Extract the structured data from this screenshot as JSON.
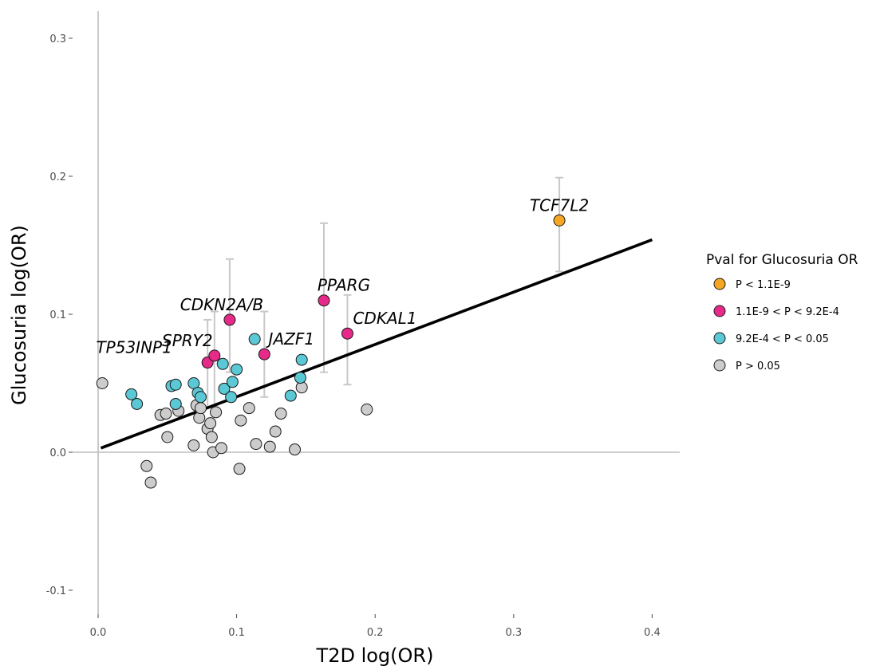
{
  "chart_data": {
    "type": "scatter",
    "xlabel": "T2D log(OR)",
    "ylabel": "Glucosuria log(OR)",
    "xlim": [
      0.0,
      0.42
    ],
    "ylim": [
      -0.12,
      0.32
    ],
    "x_ticks": [
      "0.0",
      "0.1",
      "0.2",
      "0.3",
      "0.4"
    ],
    "y_ticks": [
      "0.3",
      "0.2",
      "0.1",
      "0.0",
      "-0.1"
    ],
    "grid": false,
    "legend": {
      "title": "Pval for Glucosuria OR",
      "position": "right",
      "entries": [
        {
          "label": "P < 1.1E-9",
          "color": "#F5A623"
        },
        {
          "label": "1.1E-9 < P < 9.2E-4",
          "color": "#E7298A"
        },
        {
          "label": "9.2E-4 < P < 0.05",
          "color": "#5BC8D5"
        },
        {
          "label": "P > 0.05",
          "color": "#CCCCCC"
        }
      ]
    },
    "regression_line": {
      "x": [
        0.002,
        0.4
      ],
      "y": [
        0.003,
        0.154
      ]
    },
    "error_bars": [
      {
        "x": 0.333,
        "low": 0.131,
        "high": 0.199
      },
      {
        "x": 0.163,
        "low": 0.058,
        "high": 0.166
      },
      {
        "x": 0.18,
        "low": 0.049,
        "high": 0.114
      },
      {
        "x": 0.095,
        "low": 0.058,
        "high": 0.14
      },
      {
        "x": 0.12,
        "low": 0.04,
        "high": 0.102
      },
      {
        "x": 0.079,
        "low": 0.033,
        "high": 0.096
      },
      {
        "x": 0.084,
        "low": 0.034,
        "high": 0.102
      }
    ],
    "points": [
      {
        "x": 0.333,
        "y": 0.168,
        "group": 0
      },
      {
        "x": 0.163,
        "y": 0.11,
        "group": 1
      },
      {
        "x": 0.18,
        "y": 0.086,
        "group": 1
      },
      {
        "x": 0.095,
        "y": 0.096,
        "group": 1
      },
      {
        "x": 0.12,
        "y": 0.071,
        "group": 1
      },
      {
        "x": 0.079,
        "y": 0.065,
        "group": 1
      },
      {
        "x": 0.084,
        "y": 0.07,
        "group": 1
      },
      {
        "x": 0.024,
        "y": 0.042,
        "group": 2
      },
      {
        "x": 0.028,
        "y": 0.035,
        "group": 2
      },
      {
        "x": 0.053,
        "y": 0.048,
        "group": 2
      },
      {
        "x": 0.056,
        "y": 0.049,
        "group": 2
      },
      {
        "x": 0.056,
        "y": 0.035,
        "group": 2
      },
      {
        "x": 0.069,
        "y": 0.05,
        "group": 2
      },
      {
        "x": 0.072,
        "y": 0.043,
        "group": 2
      },
      {
        "x": 0.074,
        "y": 0.04,
        "group": 2
      },
      {
        "x": 0.09,
        "y": 0.064,
        "group": 2
      },
      {
        "x": 0.091,
        "y": 0.046,
        "group": 2
      },
      {
        "x": 0.096,
        "y": 0.04,
        "group": 2
      },
      {
        "x": 0.097,
        "y": 0.051,
        "group": 2
      },
      {
        "x": 0.1,
        "y": 0.06,
        "group": 2
      },
      {
        "x": 0.113,
        "y": 0.082,
        "group": 2
      },
      {
        "x": 0.139,
        "y": 0.041,
        "group": 2
      },
      {
        "x": 0.146,
        "y": 0.054,
        "group": 2
      },
      {
        "x": 0.147,
        "y": 0.067,
        "group": 2
      },
      {
        "x": 0.003,
        "y": 0.05,
        "group": 3
      },
      {
        "x": 0.035,
        "y": -0.01,
        "group": 3
      },
      {
        "x": 0.038,
        "y": -0.022,
        "group": 3
      },
      {
        "x": 0.045,
        "y": 0.027,
        "group": 3
      },
      {
        "x": 0.049,
        "y": 0.028,
        "group": 3
      },
      {
        "x": 0.05,
        "y": 0.011,
        "group": 3
      },
      {
        "x": 0.058,
        "y": 0.03,
        "group": 3
      },
      {
        "x": 0.069,
        "y": 0.005,
        "group": 3
      },
      {
        "x": 0.071,
        "y": 0.034,
        "group": 3
      },
      {
        "x": 0.073,
        "y": 0.025,
        "group": 3
      },
      {
        "x": 0.074,
        "y": 0.032,
        "group": 3
      },
      {
        "x": 0.079,
        "y": 0.017,
        "group": 3
      },
      {
        "x": 0.081,
        "y": 0.021,
        "group": 3
      },
      {
        "x": 0.082,
        "y": 0.011,
        "group": 3
      },
      {
        "x": 0.083,
        "y": 0.0,
        "group": 3
      },
      {
        "x": 0.085,
        "y": 0.029,
        "group": 3
      },
      {
        "x": 0.089,
        "y": 0.003,
        "group": 3
      },
      {
        "x": 0.102,
        "y": -0.012,
        "group": 3
      },
      {
        "x": 0.103,
        "y": 0.023,
        "group": 3
      },
      {
        "x": 0.109,
        "y": 0.032,
        "group": 3
      },
      {
        "x": 0.114,
        "y": 0.006,
        "group": 3
      },
      {
        "x": 0.124,
        "y": 0.004,
        "group": 3
      },
      {
        "x": 0.128,
        "y": 0.015,
        "group": 3
      },
      {
        "x": 0.132,
        "y": 0.028,
        "group": 3
      },
      {
        "x": 0.142,
        "y": 0.002,
        "group": 3
      },
      {
        "x": 0.147,
        "y": 0.047,
        "group": 3
      },
      {
        "x": 0.194,
        "y": 0.031,
        "group": 3
      }
    ],
    "annotations": [
      {
        "text": "TCF7L2",
        "x": 0.333,
        "y": 0.168
      },
      {
        "text": "PPARG",
        "x": 0.163,
        "y": 0.11
      },
      {
        "text": "CDKAL1",
        "x": 0.18,
        "y": 0.086
      },
      {
        "text": "CDKN2A/B",
        "x": 0.095,
        "y": 0.096
      },
      {
        "text": "JAZF1",
        "x": 0.12,
        "y": 0.071
      },
      {
        "text": "SPRY2",
        "x": 0.084,
        "y": 0.07
      },
      {
        "text": "TP53INP1",
        "x": 0.079,
        "y": 0.065
      }
    ]
  }
}
